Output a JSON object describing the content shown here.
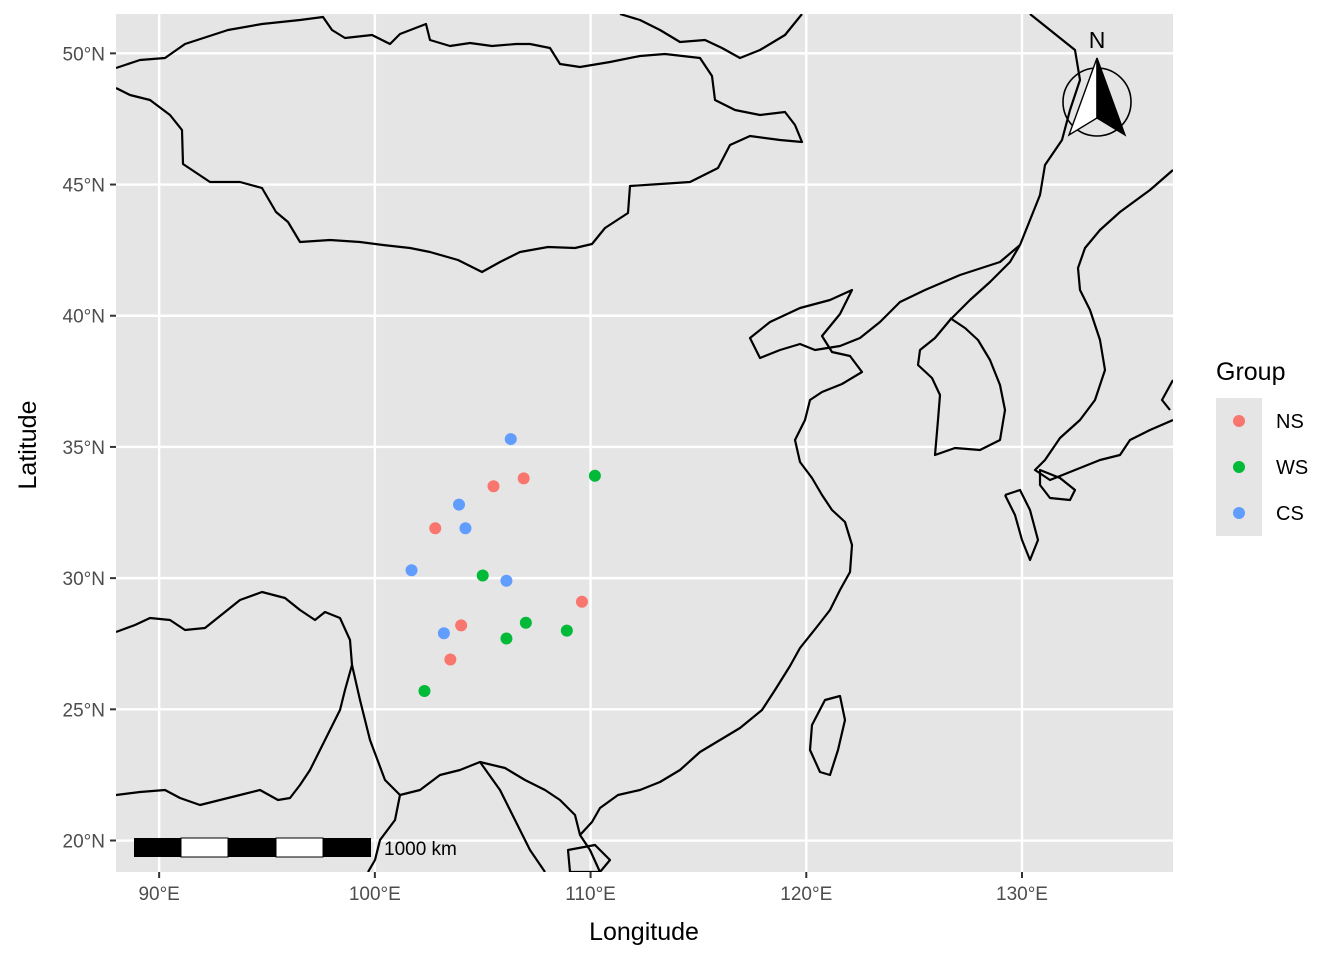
{
  "chart_data": {
    "type": "scatter",
    "xlabel": "Longitude",
    "ylabel": "Latitude",
    "xlim": [
      88,
      137
    ],
    "ylim": [
      18.8,
      51.5
    ],
    "x_ticks": [
      90,
      100,
      110,
      120,
      130
    ],
    "x_tick_labels": [
      "90°E",
      "100°E",
      "110°E",
      "120°E",
      "130°E"
    ],
    "y_ticks": [
      20,
      25,
      30,
      35,
      40,
      45,
      50
    ],
    "y_tick_labels": [
      "20°N",
      "25°N",
      "30°N",
      "35°N",
      "40°N",
      "45°N",
      "50°N"
    ],
    "grid": true,
    "legend": {
      "title": "Group",
      "position": "right"
    },
    "series": [
      {
        "name": "NS",
        "color": "#f8766d",
        "points": [
          [
            105.5,
            33.5
          ],
          [
            106.9,
            33.8
          ],
          [
            102.8,
            31.9
          ],
          [
            104.0,
            28.2
          ],
          [
            103.5,
            26.9
          ],
          [
            109.6,
            29.1
          ]
        ]
      },
      {
        "name": "WS",
        "color": "#00ba38",
        "points": [
          [
            110.2,
            33.9
          ],
          [
            105.0,
            30.1
          ],
          [
            107.0,
            28.3
          ],
          [
            106.1,
            27.7
          ],
          [
            108.9,
            28.0
          ],
          [
            102.3,
            25.7
          ]
        ]
      },
      {
        "name": "CS",
        "color": "#619cff",
        "points": [
          [
            106.3,
            35.3
          ],
          [
            103.9,
            32.8
          ],
          [
            104.2,
            31.9
          ],
          [
            101.7,
            30.3
          ],
          [
            106.1,
            29.9
          ],
          [
            103.2,
            27.9
          ]
        ]
      }
    ],
    "annotations": {
      "scale_bar": "1000 km",
      "north_arrow": "N"
    }
  }
}
